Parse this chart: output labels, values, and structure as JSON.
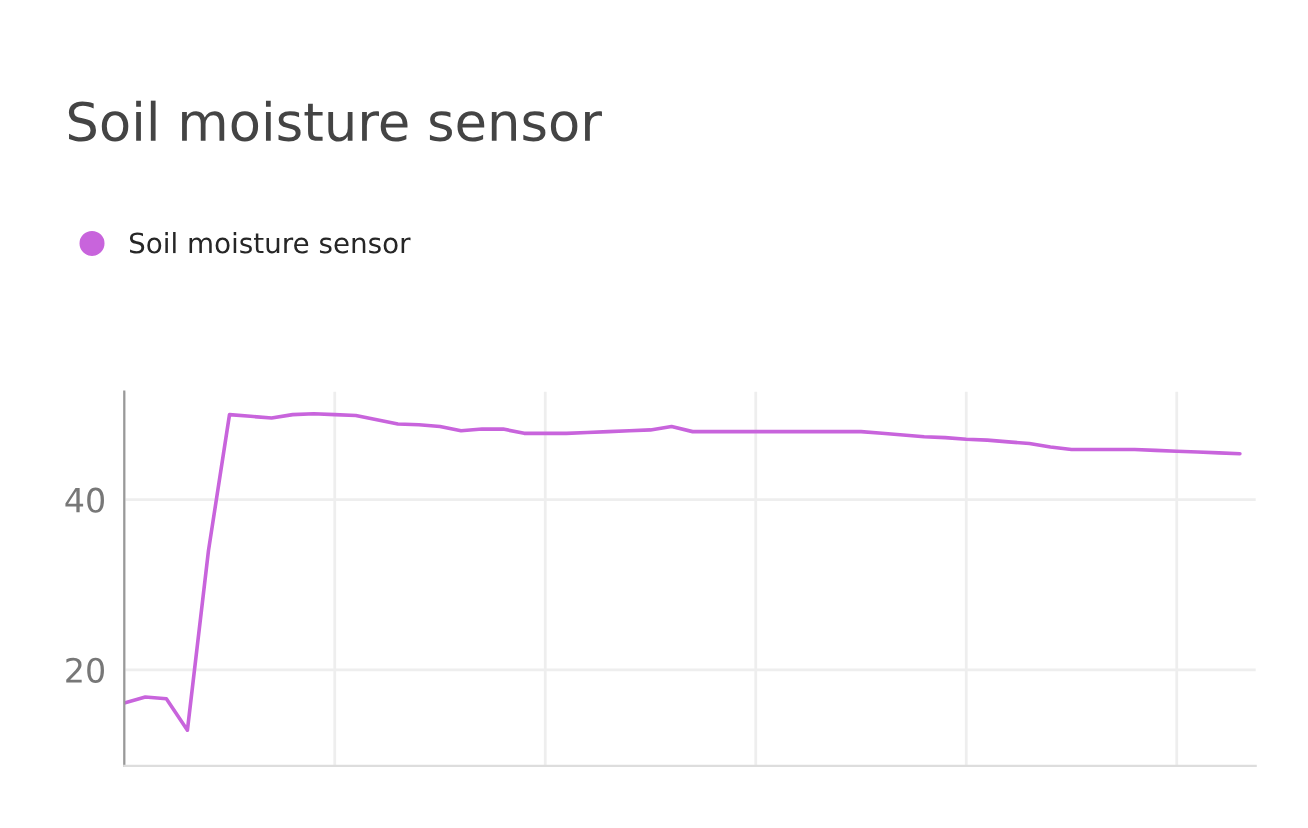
{
  "chart_data": {
    "type": "line",
    "title": "Soil moisture sensor",
    "categories": [
      null,
      null,
      null,
      null,
      null,
      null,
      null,
      null,
      null,
      null,
      null,
      null,
      null,
      null,
      null,
      null,
      null,
      null,
      null,
      null,
      null,
      null,
      null,
      null,
      null,
      null,
      null,
      null,
      null,
      null,
      null,
      null,
      null,
      null,
      null,
      null,
      null,
      null,
      null,
      null,
      null,
      null,
      null,
      null,
      null,
      null,
      null,
      null,
      null,
      null,
      null,
      null,
      null,
      null
    ],
    "series": [
      {
        "name": "Soil moisture sensor",
        "color": "#c864dc",
        "values": [
          16.1,
          16.8,
          16.6,
          12.9,
          34,
          50,
          49.8,
          49.6,
          50.0,
          50.1,
          50.0,
          49.9,
          49.4,
          48.9,
          48.8,
          48.6,
          48.1,
          48.3,
          48.3,
          47.8,
          47.8,
          47.8,
          47.9,
          48.0,
          48.1,
          48.2,
          48.6,
          48.0,
          48.0,
          48.0,
          48.0,
          48.0,
          48.0,
          48.0,
          48.0,
          48.0,
          47.8,
          47.6,
          47.4,
          47.3,
          47.1,
          47.0,
          46.8,
          46.6,
          46.2,
          45.9,
          45.9,
          45.9,
          45.9,
          45.8,
          45.7,
          45.6,
          45.5,
          45.4
        ]
      }
    ],
    "ylim": [
      8.7,
      52.7
    ],
    "yticks": [
      20,
      40
    ],
    "grid": true,
    "legend": "top left",
    "tick_labels": "y",
    "marker": "none",
    "line_style": "solid"
  }
}
